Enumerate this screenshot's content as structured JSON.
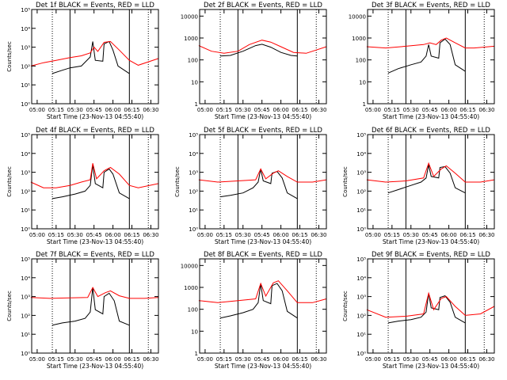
{
  "colors": {
    "events": "#000000",
    "lld": "#ff0000",
    "axis": "#000000",
    "background": "#ffffff"
  },
  "chart_data": [
    {
      "type": "line",
      "title": "Det 1f BLACK = Events, RED = LLD",
      "xlabel": "Start Time (23-Nov-13 04:55:40)",
      "ylabel": "Counts/sec",
      "yscale": "log",
      "ylim": [
        1,
        100000
      ],
      "yticks": [
        "10⁰",
        "10¹",
        "10²",
        "10³",
        "10⁴",
        "10⁵"
      ],
      "xticks": [
        "05:00",
        "05:15",
        "05:30",
        "05:45",
        "06:00",
        "06:15",
        "06:30"
      ],
      "xlim": [
        "04:55:40",
        "06:36:00"
      ],
      "vlines": {
        "solid": [
          "05:26",
          "06:13"
        ],
        "dotted": [
          "05:12",
          "06:28"
        ]
      },
      "series": [
        {
          "name": "Events",
          "x": [
            "05:12",
            "05:20",
            "05:26",
            "05:35",
            "05:42",
            "05:44",
            "05:46",
            "05:52",
            "05:53",
            "05:57",
            "06:00",
            "06:04",
            "06:13"
          ],
          "y": [
            40,
            60,
            80,
            100,
            300,
            2000,
            200,
            180,
            1500,
            2000,
            700,
            100,
            40
          ]
        },
        {
          "name": "LLD",
          "x": [
            "04:55",
            "05:05",
            "05:15",
            "05:26",
            "05:35",
            "05:42",
            "05:45",
            "05:48",
            "05:53",
            "05:58",
            "06:05",
            "06:13",
            "06:20",
            "06:36"
          ],
          "y": [
            100,
            150,
            200,
            280,
            350,
            500,
            1000,
            600,
            1800,
            2000,
            700,
            200,
            110,
            250
          ]
        }
      ]
    },
    {
      "type": "line",
      "title": "Det 2f BLACK = Events, RED = LLD",
      "xlabel": "Start Time (23-Nov-13 04:55:40)",
      "ylabel": "",
      "yscale": "log",
      "ylim": [
        1,
        20000
      ],
      "yticks": [
        "1",
        "10",
        "100",
        "1000",
        "10000"
      ],
      "xticks": [
        "05:00",
        "05:15",
        "05:30",
        "05:45",
        "06:00",
        "06:15",
        "06:30"
      ],
      "xlim": [
        "04:55:40",
        "06:36:00"
      ],
      "vlines": {
        "solid": [
          "05:26",
          "06:13"
        ],
        "dotted": [
          "05:12",
          "06:28"
        ]
      },
      "series": [
        {
          "name": "Events",
          "x": [
            "05:12",
            "05:20",
            "05:30",
            "05:40",
            "05:45",
            "05:52",
            "06:00",
            "06:08",
            "06:13"
          ],
          "y": [
            150,
            160,
            250,
            450,
            520,
            380,
            220,
            160,
            150
          ]
        },
        {
          "name": "LLD",
          "x": [
            "04:55",
            "05:05",
            "05:15",
            "05:26",
            "05:35",
            "05:45",
            "05:52",
            "06:00",
            "06:10",
            "06:20",
            "06:36"
          ],
          "y": [
            450,
            250,
            200,
            250,
            500,
            800,
            650,
            400,
            220,
            200,
            400
          ]
        }
      ]
    },
    {
      "type": "line",
      "title": "Det 3f BLACK = Events, RED = LLD",
      "xlabel": "Start Time (23-Nov-13 04:55:40)",
      "ylabel": "",
      "yscale": "log",
      "ylim": [
        1,
        20000
      ],
      "yticks": [
        "1",
        "10",
        "100",
        "1000",
        "10000"
      ],
      "xticks": [
        "05:00",
        "05:15",
        "05:30",
        "05:45",
        "06:00",
        "06:15",
        "06:30"
      ],
      "xlim": [
        "04:55:40",
        "06:36:00"
      ],
      "vlines": {
        "solid": [
          "05:26",
          "06:13"
        ],
        "dotted": [
          "05:12",
          "06:28"
        ]
      },
      "series": [
        {
          "name": "Events",
          "x": [
            "05:12",
            "05:20",
            "05:30",
            "05:38",
            "05:42",
            "05:44",
            "05:46",
            "05:52",
            "05:53",
            "05:57",
            "06:01",
            "06:05",
            "06:13"
          ],
          "y": [
            25,
            40,
            60,
            80,
            150,
            500,
            150,
            120,
            600,
            900,
            500,
            60,
            30
          ]
        },
        {
          "name": "LLD",
          "x": [
            "04:55",
            "05:10",
            "05:26",
            "05:40",
            "05:45",
            "05:50",
            "05:54",
            "05:58",
            "06:05",
            "06:13",
            "06:20",
            "06:36"
          ],
          "y": [
            400,
            350,
            420,
            500,
            600,
            500,
            800,
            1000,
            600,
            350,
            350,
            420
          ]
        }
      ]
    },
    {
      "type": "line",
      "title": "Det 4f BLACK = Events, RED = LLD",
      "xlabel": "Start Time (23-Nov-13 04:55:40)",
      "ylabel": "Counts/sec",
      "yscale": "log",
      "ylim": [
        1,
        100000
      ],
      "yticks": [
        "10⁰",
        "10¹",
        "10²",
        "10³",
        "10⁴",
        "10⁵"
      ],
      "xticks": [
        "05:00",
        "05:15",
        "05:30",
        "05:45",
        "06:00",
        "06:15",
        "06:30"
      ],
      "xlim": [
        "04:55:40",
        "06:36:00"
      ],
      "vlines": {
        "solid": [
          "05:26",
          "06:13"
        ],
        "dotted": [
          "05:12",
          "06:28"
        ]
      },
      "series": [
        {
          "name": "Events",
          "x": [
            "05:12",
            "05:20",
            "05:30",
            "05:38",
            "05:42",
            "05:44",
            "05:46",
            "05:52",
            "05:53",
            "05:57",
            "06:00",
            "06:05",
            "06:13"
          ],
          "y": [
            40,
            50,
            70,
            100,
            200,
            2500,
            250,
            150,
            1000,
            1500,
            800,
            80,
            40
          ]
        },
        {
          "name": "LLD",
          "x": [
            "04:55",
            "05:05",
            "05:15",
            "05:26",
            "05:35",
            "05:42",
            "05:44",
            "05:47",
            "05:53",
            "05:58",
            "06:05",
            "06:13",
            "06:20",
            "06:36"
          ],
          "y": [
            300,
            150,
            150,
            200,
            300,
            400,
            3000,
            450,
            1200,
            1800,
            800,
            200,
            150,
            250
          ]
        }
      ]
    },
    {
      "type": "line",
      "title": "Det 5f BLACK = Events, RED = LLD",
      "xlabel": "Start Time (23-Nov-13 04:55:40)",
      "ylabel": "Counts/sec",
      "yscale": "log",
      "ylim": [
        1,
        100000
      ],
      "yticks": [
        "10⁰",
        "10¹",
        "10²",
        "10³",
        "10⁴",
        "10⁵"
      ],
      "xticks": [
        "05:00",
        "05:15",
        "05:30",
        "05:45",
        "06:00",
        "06:15",
        "06:30"
      ],
      "xlim": [
        "04:55:40",
        "06:36:00"
      ],
      "vlines": {
        "solid": [
          "05:26",
          "06:13"
        ],
        "dotted": [
          "05:12",
          "06:28"
        ]
      },
      "series": [
        {
          "name": "Events",
          "x": [
            "05:12",
            "05:20",
            "05:30",
            "05:38",
            "05:42",
            "05:44",
            "05:46",
            "05:52",
            "05:53",
            "05:57",
            "06:01",
            "06:05",
            "06:13"
          ],
          "y": [
            50,
            60,
            80,
            150,
            300,
            1500,
            350,
            250,
            900,
            1100,
            500,
            80,
            40
          ]
        },
        {
          "name": "LLD",
          "x": [
            "04:55",
            "05:10",
            "05:26",
            "05:40",
            "05:44",
            "05:48",
            "05:54",
            "05:58",
            "06:05",
            "06:13",
            "06:25",
            "06:36"
          ],
          "y": [
            400,
            300,
            350,
            400,
            1500,
            450,
            900,
            1200,
            600,
            300,
            300,
            400
          ]
        }
      ]
    },
    {
      "type": "line",
      "title": "Det 6f BLACK = Events, RED = LLD",
      "xlabel": "Start Time (23-Nov-13 04:55:40)",
      "ylabel": "Counts/sec",
      "yscale": "log",
      "ylim": [
        1,
        100000
      ],
      "yticks": [
        "10⁰",
        "10¹",
        "10²",
        "10³",
        "10⁴",
        "10⁵"
      ],
      "xticks": [
        "05:00",
        "05:15",
        "05:30",
        "05:45",
        "06:00",
        "06:15",
        "06:30"
      ],
      "xlim": [
        "04:55:40",
        "06:36:00"
      ],
      "vlines": {
        "solid": [
          "05:26",
          "06:13"
        ],
        "dotted": [
          "05:12",
          "06:28"
        ]
      },
      "series": [
        {
          "name": "Events",
          "x": [
            "05:12",
            "05:20",
            "05:30",
            "05:38",
            "05:42",
            "05:44",
            "05:46",
            "05:52",
            "05:53",
            "05:57",
            "06:01",
            "06:05",
            "06:13"
          ],
          "y": [
            80,
            120,
            200,
            300,
            500,
            2500,
            600,
            500,
            1800,
            2000,
            900,
            150,
            80
          ]
        },
        {
          "name": "LLD",
          "x": [
            "04:55",
            "05:10",
            "05:26",
            "05:40",
            "05:44",
            "05:48",
            "05:54",
            "05:58",
            "06:05",
            "06:13",
            "06:25",
            "06:36"
          ],
          "y": [
            400,
            300,
            350,
            500,
            3000,
            600,
            1500,
            2200,
            900,
            300,
            300,
            400
          ]
        }
      ]
    },
    {
      "type": "line",
      "title": "Det 7f BLACK = Events, RED = LLD",
      "xlabel": "Start Time (23-Nov-13 04:55:40)",
      "ylabel": "Counts/sec",
      "yscale": "log",
      "ylim": [
        1,
        100000
      ],
      "yticks": [
        "10⁰",
        "10¹",
        "10²",
        "10³",
        "10⁴",
        "10⁵"
      ],
      "xticks": [
        "05:00",
        "05:15",
        "05:30",
        "05:45",
        "06:00",
        "06:15",
        "06:30"
      ],
      "xlim": [
        "04:55:40",
        "06:36:00"
      ],
      "vlines": {
        "solid": [
          "05:26",
          "06:13"
        ],
        "dotted": [
          "05:12",
          "06:28"
        ]
      },
      "series": [
        {
          "name": "Events",
          "x": [
            "05:12",
            "05:20",
            "05:30",
            "05:38",
            "05:42",
            "05:44",
            "05:46",
            "05:52",
            "05:53",
            "05:57",
            "06:01",
            "06:05",
            "06:13"
          ],
          "y": [
            30,
            40,
            50,
            70,
            150,
            3000,
            200,
            120,
            1000,
            1500,
            600,
            50,
            30
          ]
        },
        {
          "name": "LLD",
          "x": [
            "04:55",
            "05:10",
            "05:26",
            "05:40",
            "05:44",
            "05:48",
            "05:54",
            "05:58",
            "06:05",
            "06:13",
            "06:25",
            "06:36"
          ],
          "y": [
            900,
            800,
            850,
            900,
            3000,
            1000,
            1600,
            2000,
            1100,
            800,
            800,
            900
          ]
        }
      ]
    },
    {
      "type": "line",
      "title": "Det 8f BLACK = Events, RED = LLD",
      "xlabel": "Start Time (23-Nov-13 04:55:40)",
      "ylabel": "",
      "yscale": "log",
      "ylim": [
        1,
        20000
      ],
      "yticks": [
        "1",
        "10",
        "100",
        "1000",
        "10000"
      ],
      "xticks": [
        "05:00",
        "05:15",
        "05:30",
        "05:45",
        "06:00",
        "06:15",
        "06:30"
      ],
      "xlim": [
        "04:55:40",
        "06:36:00"
      ],
      "vlines": {
        "solid": [
          "05:26",
          "06:13"
        ],
        "dotted": [
          "05:12",
          "06:28"
        ]
      },
      "series": [
        {
          "name": "Events",
          "x": [
            "05:12",
            "05:20",
            "05:30",
            "05:38",
            "05:42",
            "05:44",
            "05:46",
            "05:52",
            "05:53",
            "05:57",
            "06:01",
            "06:05",
            "06:13"
          ],
          "y": [
            40,
            50,
            70,
            100,
            200,
            1500,
            250,
            180,
            1200,
            1500,
            700,
            80,
            40
          ]
        },
        {
          "name": "LLD",
          "x": [
            "04:55",
            "05:10",
            "05:26",
            "05:40",
            "05:44",
            "05:48",
            "05:54",
            "05:58",
            "06:05",
            "06:13",
            "06:25",
            "06:36"
          ],
          "y": [
            250,
            200,
            250,
            300,
            1500,
            400,
            1600,
            2000,
            700,
            200,
            200,
            300
          ]
        }
      ]
    },
    {
      "type": "line",
      "title": "Det 9f BLACK = Events, RED = LLD",
      "xlabel": "Start Time (23-Nov-13 04:55:40)",
      "ylabel": "Counts/sec",
      "yscale": "log",
      "ylim": [
        1,
        100000
      ],
      "yticks": [
        "10⁰",
        "10¹",
        "10²",
        "10³",
        "10⁴",
        "10⁵"
      ],
      "xticks": [
        "05:00",
        "05:15",
        "05:30",
        "05:45",
        "06:00",
        "06:15",
        "06:30"
      ],
      "xlim": [
        "04:55:40",
        "06:36:00"
      ],
      "vlines": {
        "solid": [
          "05:26",
          "06:13"
        ],
        "dotted": [
          "05:12",
          "06:28"
        ]
      },
      "series": [
        {
          "name": "Events",
          "x": [
            "05:12",
            "05:20",
            "05:30",
            "05:38",
            "05:42",
            "05:44",
            "05:46",
            "05:52",
            "05:53",
            "05:57",
            "06:01",
            "06:05",
            "06:13"
          ],
          "y": [
            40,
            50,
            60,
            80,
            150,
            1500,
            250,
            200,
            900,
            1100,
            500,
            80,
            40
          ]
        },
        {
          "name": "LLD",
          "x": [
            "04:55",
            "05:10",
            "05:26",
            "05:40",
            "05:44",
            "05:48",
            "05:54",
            "05:58",
            "06:05",
            "06:13",
            "06:25",
            "06:36"
          ],
          "y": [
            200,
            80,
            90,
            120,
            1500,
            200,
            800,
            1000,
            300,
            100,
            120,
            300
          ]
        }
      ]
    }
  ]
}
